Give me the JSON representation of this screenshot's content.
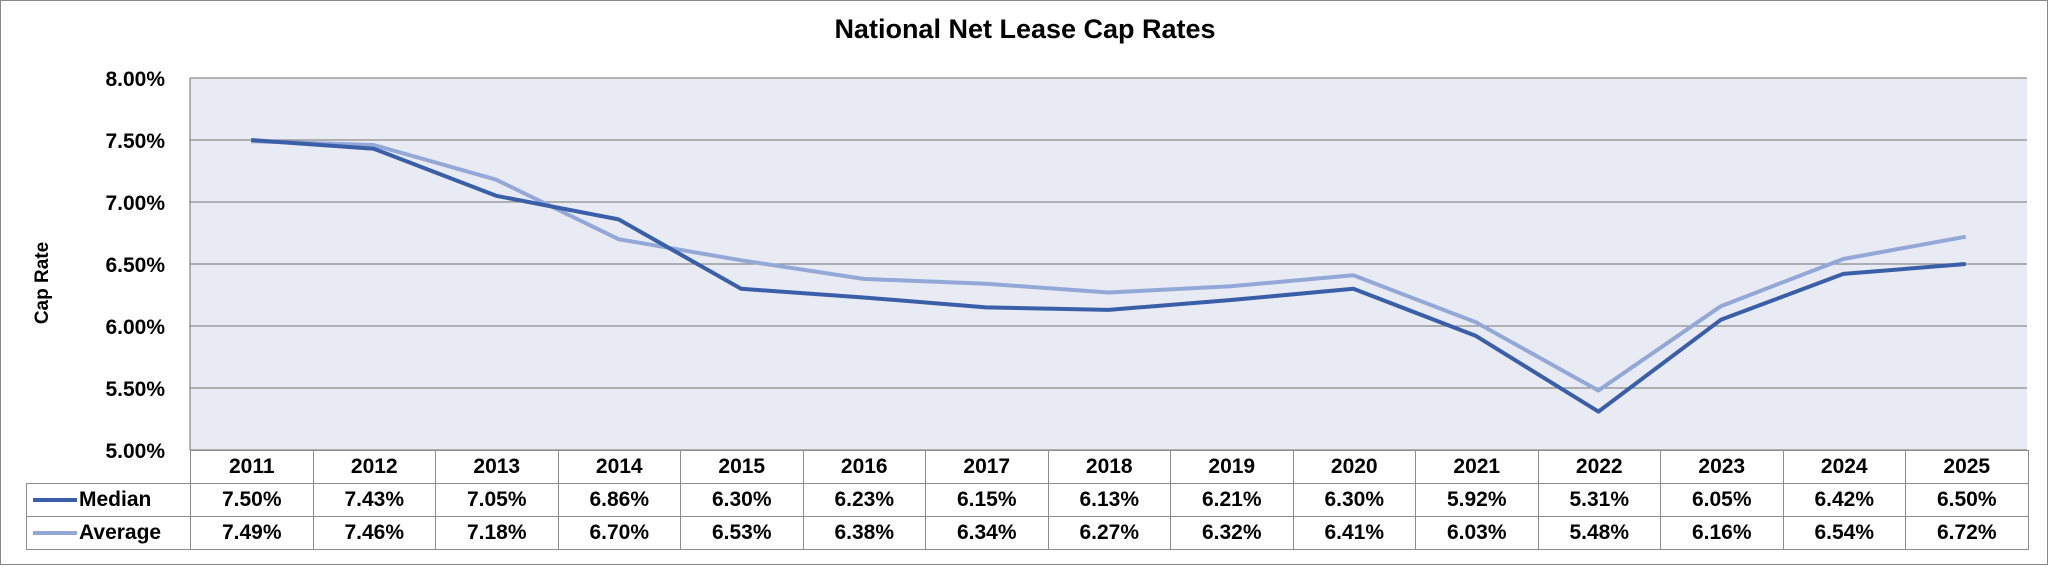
{
  "chart_data": {
    "type": "line",
    "title": "National Net Lease Cap Rates",
    "xlabel": "",
    "ylabel": "Cap Rate",
    "ylim": [
      5.0,
      8.0
    ],
    "yticks": [
      "8.00%",
      "7.50%",
      "7.00%",
      "6.50%",
      "6.00%",
      "5.50%",
      "5.00%"
    ],
    "ytick_values": [
      8.0,
      7.5,
      7.0,
      6.5,
      6.0,
      5.5,
      5.0
    ],
    "grid": true,
    "legend": "data-table-bottom",
    "categories": [
      "2011",
      "2012",
      "2013",
      "2014",
      "2015",
      "2016",
      "2017",
      "2018",
      "2019",
      "2020",
      "2021",
      "2022",
      "2023",
      "2024",
      "2025"
    ],
    "series": [
      {
        "name": "Median",
        "color": "#3a5fa8",
        "values": [
          7.5,
          7.43,
          7.05,
          6.86,
          6.3,
          6.23,
          6.15,
          6.13,
          6.21,
          6.3,
          5.92,
          5.31,
          6.05,
          6.42,
          6.5
        ],
        "labels": [
          "7.50%",
          "7.43%",
          "7.05%",
          "6.86%",
          "6.30%",
          "6.23%",
          "6.15%",
          "6.13%",
          "6.21%",
          "6.30%",
          "5.92%",
          "5.31%",
          "6.05%",
          "6.42%",
          "6.50%"
        ]
      },
      {
        "name": "Average",
        "color": "#94a8d8",
        "values": [
          7.49,
          7.46,
          7.18,
          6.7,
          6.53,
          6.38,
          6.34,
          6.27,
          6.32,
          6.41,
          6.03,
          5.48,
          6.16,
          6.54,
          6.72
        ],
        "labels": [
          "7.49%",
          "7.46%",
          "7.18%",
          "6.70%",
          "6.53%",
          "6.38%",
          "6.34%",
          "6.27%",
          "6.32%",
          "6.41%",
          "6.03%",
          "5.48%",
          "6.16%",
          "6.54%",
          "6.72%"
        ]
      }
    ]
  },
  "colors": {
    "plot_background": "#e8eaf4",
    "gridline": "#8c8c8c"
  }
}
